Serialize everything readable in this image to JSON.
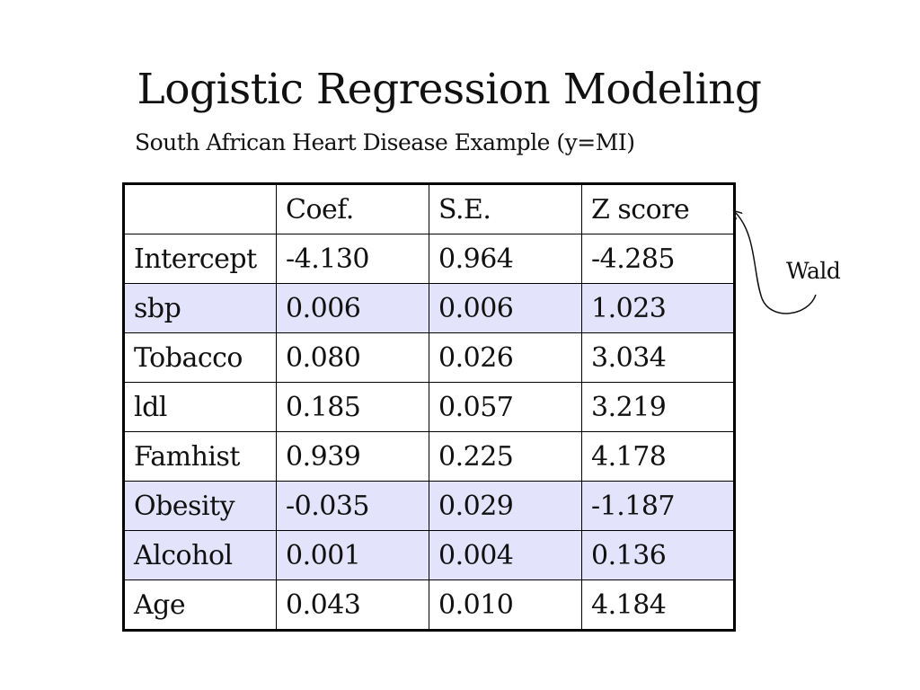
{
  "slide": {
    "title": "Logistic Regression Modeling",
    "subtitle": "South African Heart Disease Example (y=MI)"
  },
  "table": {
    "headers": [
      "",
      "Coef.",
      "S.E.",
      "Z score"
    ],
    "rows": [
      {
        "label": "Intercept",
        "coef": "-4.130",
        "se": "0.964",
        "z": "-4.285",
        "highlight": false
      },
      {
        "label": "sbp",
        "coef": "0.006",
        "se": "0.006",
        "z": "1.023",
        "highlight": true
      },
      {
        "label": "Tobacco",
        "coef": "0.080",
        "se": "0.026",
        "z": "3.034",
        "highlight": false
      },
      {
        "label": "ldl",
        "coef": "0.185",
        "se": "0.057",
        "z": "3.219",
        "highlight": false
      },
      {
        "label": "Famhist",
        "coef": "0.939",
        "se": "0.225",
        "z": "4.178",
        "highlight": false
      },
      {
        "label": "Obesity",
        "coef": "-0.035",
        "se": "0.029",
        "z": "-1.187",
        "highlight": true
      },
      {
        "label": "Alcohol",
        "coef": "0.001",
        "se": "0.004",
        "z": "0.136",
        "highlight": true
      },
      {
        "label": "Age",
        "coef": "0.043",
        "se": "0.010",
        "z": "4.184",
        "highlight": false
      }
    ],
    "highlight_color": "#e3e3fb"
  },
  "annotation": {
    "label": "Wald",
    "points_to": "Z score"
  }
}
